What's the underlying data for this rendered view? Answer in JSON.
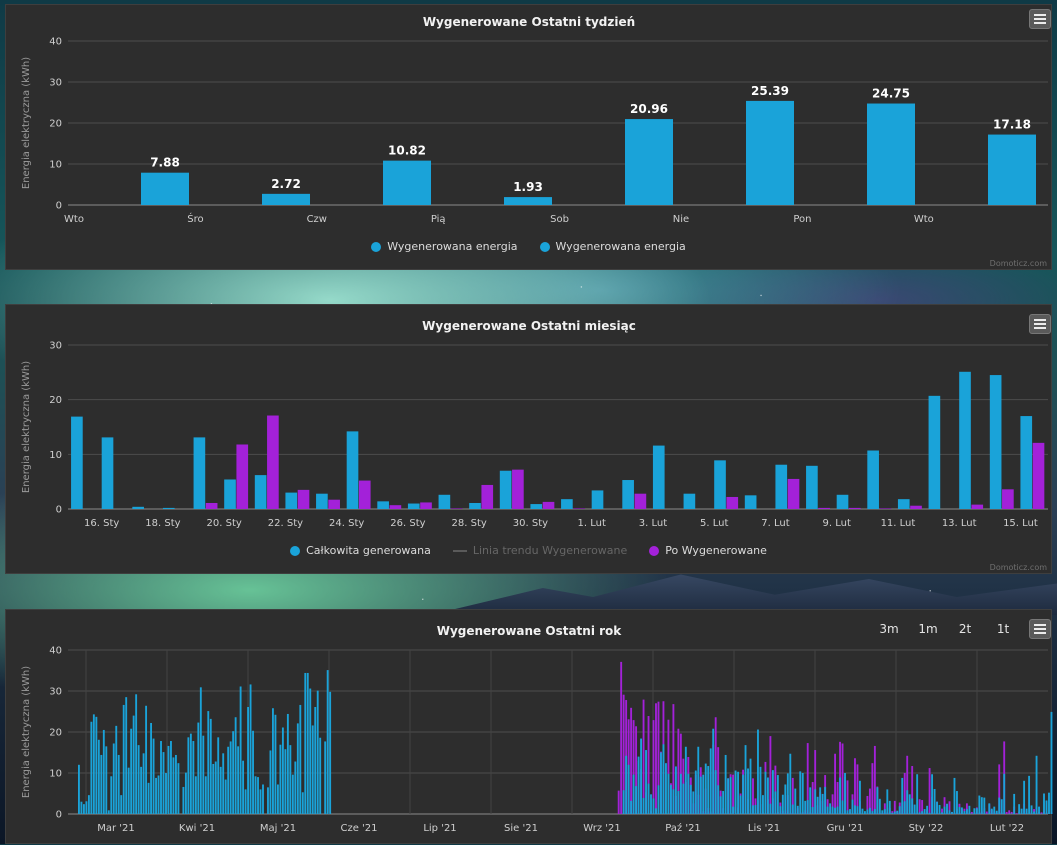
{
  "credit": "Domoticz.com",
  "colors": {
    "blue": "#1aa3d9",
    "purple": "#a321d9",
    "trend": "#5a5a5a"
  },
  "chart_data": [
    {
      "type": "bar",
      "title": "Wygenerowane Ostatni tydzień",
      "ylabel": "Energia elektryczna (kWh)",
      "ylim": [
        0,
        40
      ],
      "yticks": [
        0,
        10,
        20,
        30,
        40
      ],
      "categories": [
        "Wto",
        "Śro",
        "Czw",
        "Pią",
        "Sob",
        "Nie",
        "Pon",
        "Wto"
      ],
      "series": [
        {
          "name": "Wygenerowana energia",
          "values": [
            7.88,
            2.72,
            10.82,
            1.93,
            20.96,
            25.39,
            24.75,
            17.18
          ]
        }
      ],
      "legend": [
        "Wygenerowana energia",
        "Wygenerowana energia"
      ],
      "grid": true
    },
    {
      "type": "bar",
      "title": "Wygenerowane Ostatni miesiąc",
      "ylabel": "Energia elektryczna (kWh)",
      "ylim": [
        0,
        30
      ],
      "yticks": [
        0,
        10,
        20,
        30
      ],
      "xticks": [
        "16. Sty",
        "18. Sty",
        "20. Sty",
        "22. Sty",
        "24. Sty",
        "26. Sty",
        "28. Sty",
        "30. Sty",
        "1. Lut",
        "3. Lut",
        "5. Lut",
        "7. Lut",
        "9. Lut",
        "11. Lut",
        "13. Lut",
        "15. Lut"
      ],
      "series": [
        {
          "name": "Całkowita generowana",
          "values": [
            16.9,
            13.1,
            0.4,
            0.2,
            13.1,
            5.4,
            6.2,
            3.0,
            2.8,
            14.2,
            1.4,
            1.0,
            2.6,
            1.1,
            7.0,
            0.9,
            1.8,
            3.4,
            5.3,
            11.6,
            2.8,
            8.9,
            2.5,
            8.1,
            7.9,
            2.6,
            10.7,
            1.8,
            20.7,
            25.1,
            24.5,
            17.0
          ]
        },
        {
          "name": "Po Wygenerowane",
          "values": [
            0,
            0,
            0,
            0,
            1.1,
            11.8,
            17.1,
            3.5,
            1.7,
            5.2,
            0.7,
            1.2,
            0.1,
            4.4,
            7.2,
            1.3,
            0.1,
            0,
            2.8,
            0,
            0,
            2.2,
            0,
            5.5,
            0.2,
            0.2,
            0.1,
            0.6,
            0,
            0.8,
            3.6,
            12.1
          ]
        }
      ],
      "legend": [
        "Całkowita generowana",
        "Linia trendu Wygenerowane",
        "Po Wygenerowane"
      ],
      "grid": true
    },
    {
      "type": "bar",
      "title": "Wygenerowane Ostatni rok",
      "ylabel": "Energia elektryczna (kWh)",
      "ylim": [
        0,
        40
      ],
      "yticks": [
        0,
        10,
        20,
        30,
        40
      ],
      "xticks": [
        "Mar '21",
        "Kwi '21",
        "Maj '21",
        "Cze '21",
        "Lip '21",
        "Sie '21",
        "Wrz '21",
        "Paź '21",
        "Lis '21",
        "Gru '21",
        "Sty '22",
        "Lut '22"
      ],
      "range_buttons": [
        "3m",
        "1m",
        "2t",
        "1t"
      ],
      "series": [
        {
          "name": "Wygenerowane",
          "values": [
            12.0,
            3.0,
            2.4,
            3.1,
            4.6,
            22.5,
            24.3,
            23.7,
            18.1,
            14.4,
            20.5,
            16.5,
            0.9,
            9.2,
            17.2,
            21.5,
            14.4,
            4.6,
            26.6,
            28.5,
            11.3,
            20.8,
            24.0,
            29.2,
            16.8,
            11.5,
            14.8,
            26.4,
            7.6,
            22.2,
            18.4,
            8.8,
            9.4,
            17.8,
            15.1,
            10.0,
            16.6,
            17.8,
            13.8,
            14.4,
            12.4,
            0.0,
            6.6,
            10.1,
            18.7,
            19.6,
            17.8,
            9.2,
            22.3,
            30.9,
            19.1,
            9.2,
            25.1,
            23.2,
            12.2,
            12.8,
            18.7,
            11.5,
            14.8,
            8.4,
            16.4,
            17.7,
            20.2,
            23.6,
            16.5,
            31.1,
            13.0,
            6.0,
            26.1,
            31.6,
            20.3,
            9.2,
            9.0,
            6.0,
            7.2,
            0.0,
            6.5,
            15.5,
            25.8,
            24.2,
            7.2,
            16.9,
            21.1,
            15.8,
            24.4,
            16.8,
            9.6,
            12.8,
            22.1,
            26.6,
            5.3,
            34.4,
            34.4,
            30.6,
            21.6,
            26.1,
            30.1,
            18.6,
            0.0,
            17.7,
            35.1,
            29.8,
            0,
            0,
            0,
            0,
            0,
            0,
            0,
            0,
            0,
            0,
            0,
            0,
            0,
            0,
            0,
            0,
            0,
            0,
            0,
            0,
            0,
            0,
            0,
            0,
            0,
            0,
            0,
            0,
            0,
            0,
            0,
            0,
            0,
            0,
            0,
            0,
            0,
            0,
            0,
            0,
            0,
            0,
            0,
            0,
            0,
            0,
            0,
            0,
            0,
            0,
            0,
            0,
            0,
            0,
            0,
            0,
            0,
            0,
            0,
            0,
            0,
            0,
            0,
            0,
            0,
            0,
            0,
            0,
            0,
            0,
            0,
            0,
            0,
            0,
            0,
            0,
            0,
            0,
            0,
            0,
            0,
            0,
            0,
            0,
            0,
            0,
            0,
            0,
            0,
            0,
            0,
            0,
            0,
            0,
            0,
            0,
            0,
            0,
            0,
            0,
            0,
            0,
            0,
            0,
            0,
            0,
            0,
            0,
            0,
            0,
            0,
            0,
            0,
            0,
            0,
            0,
            0,
            5.8,
            14.2,
            12.0,
            3.2,
            9.6,
            6.8,
            14.0,
            18.4,
            3.9,
            15.6,
            7.4,
            4.8,
            3.8,
            1.4,
            7.0,
            15.0,
            17.0,
            12.4,
            9.8,
            7.1,
            6.0,
            11.6,
            5.6,
            9.8,
            7.4,
            16.4,
            9.8,
            7.1,
            5.5,
            10.6,
            16.4,
            9.1,
            9.6,
            12.3,
            11.7,
            16.0,
            20.8,
            10.7,
            7.0,
            4.3,
            5.6,
            14.4,
            8.7,
            9.0,
            1.8,
            10.6,
            10.3,
            4.5,
            9.6,
            16.8,
            11.1,
            13.5,
            2.1,
            2.2,
            20.6,
            11.5,
            4.6,
            10.3,
            8.9,
            2.5,
            10.7,
            5.5,
            9.5,
            1.9,
            4.7,
            7.2,
            9.9,
            14.7,
            2.3,
            6.2,
            2.0,
            10.4,
            10.0,
            3.2,
            3.4,
            6.5,
            1.7,
            6.0,
            4.2,
            6.5,
            4.9,
            6.6,
            1.8,
            2.6,
            1.8,
            1.5,
            1.8,
            8.9,
            3.3,
            10.0,
            0.9,
            1.2,
            3.5,
            2.1,
            1.9,
            8.1,
            1.3,
            0.7,
            1.1,
            1.5,
            0.7,
            1.2,
            6.5,
            3.7,
            0.9,
            1.2,
            6.0,
            3.2,
            0.3,
            0.6,
            0.8,
            1.9,
            8.8,
            3.1,
            5.8,
            4.8,
            3.8,
            2.3,
            9.7,
            0.4,
            0.7,
            1.2,
            2.0,
            0.3,
            9.7,
            6.1,
            3.0,
            2.2,
            0.4,
            1.8,
            2.5,
            0.9,
            0.5,
            8.8,
            5.6,
            1.7,
            1.6,
            0.7,
            1.2,
            2.0,
            0.1,
            1.4,
            1.4,
            4.5,
            4.1,
            4.0,
            0.1,
            2.6,
            1.3,
            1.8,
            0.8,
            4.0,
            3.6,
            9.8,
            0.0,
            0.1,
            0.1,
            4.9,
            0.0,
            2.4,
            1.3,
            8.1,
            1.3,
            9.3,
            2.1,
            0.6,
            14.2,
            1.8,
            0.1,
            5.0,
            3.3,
            5.2,
            24.9,
            24.1,
            17.0
          ]
        },
        {
          "name": "Po Wygenerowane",
          "values": [
            0,
            0,
            0,
            0,
            0,
            0,
            0,
            0,
            0,
            0,
            0,
            0,
            0,
            0,
            0,
            0,
            0,
            0,
            0,
            0,
            0,
            0,
            0,
            0,
            0,
            0,
            0,
            0,
            0,
            0,
            0,
            0,
            0,
            0,
            0,
            0,
            0,
            0,
            0,
            0,
            0,
            0,
            0,
            0,
            0,
            0,
            0,
            0,
            0,
            0,
            0,
            0,
            0,
            0,
            0,
            0,
            0,
            0,
            0,
            0,
            0,
            0,
            0,
            0,
            0,
            0,
            0,
            0,
            0,
            0,
            0,
            0,
            0,
            0,
            0,
            0,
            0,
            0,
            0,
            0,
            0,
            0,
            0,
            0,
            0,
            0,
            0,
            0,
            0,
            0,
            0,
            0,
            0,
            0,
            0,
            0,
            0,
            0,
            0,
            0,
            0,
            0,
            0,
            0,
            0,
            0,
            0,
            0,
            0,
            0,
            0,
            0,
            0,
            0,
            0,
            0,
            0,
            0,
            0,
            0,
            0,
            0,
            0,
            0,
            0,
            0,
            0,
            0,
            0,
            0,
            0,
            0,
            0,
            0,
            0,
            0,
            0,
            0,
            0,
            0,
            0,
            0,
            0,
            0,
            0,
            0,
            0,
            0,
            0,
            0,
            0,
            0,
            0,
            0,
            0,
            0,
            0,
            0,
            0,
            0,
            0,
            0,
            0,
            0,
            0,
            0,
            0,
            0,
            0,
            0,
            0,
            0,
            0,
            0,
            0,
            0,
            0,
            0,
            0,
            0,
            0,
            0,
            0,
            0,
            0,
            0,
            0,
            0,
            0,
            0,
            0,
            0,
            0,
            0,
            0,
            0,
            0,
            0,
            0,
            0,
            0,
            0,
            0,
            0,
            0,
            0,
            0,
            0,
            0,
            0,
            0,
            0,
            0,
            0,
            0,
            0,
            0,
            5.7,
            37.1,
            29.1,
            27.8,
            23.1,
            25.9,
            22.9,
            21.4,
            12.9,
            11.0,
            27.9,
            5.3,
            23.9,
            0.8,
            22.9,
            27.0,
            27.4,
            15.2,
            27.5,
            0.0,
            23.0,
            7.5,
            26.8,
            4.4,
            20.8,
            19.6,
            13.5,
            7.8,
            13.9,
            8.9,
            2.6,
            9.6,
            4.7,
            11.4,
            0.7,
            6.2,
            1.5,
            0.6,
            16.9,
            23.6,
            16.3,
            5.7,
            1.4,
            0.1,
            8.7,
            9.7,
            9.6,
            1.6,
            1.6,
            5.0,
            10.8,
            9.4,
            3.6,
            1.1,
            8.7,
            3.8,
            3.3,
            2.4,
            0.4,
            12.7,
            3.6,
            19.0,
            3.8,
            11.8,
            0.5,
            2.8,
            0.8,
            0.9,
            4.6,
            0.3,
            8.8,
            0.1,
            1.4,
            0.0,
            0.5,
            0.9,
            17.3,
            0.4,
            7.8,
            15.6,
            2.1,
            5.4,
            3.2,
            9.5,
            3.6,
            0.6,
            4.8,
            14.7,
            7.8,
            17.6,
            17.2,
            9.0,
            8.2,
            0.4,
            4.8,
            13.6,
            12.1,
            3.1,
            0.1,
            0.0,
            4.4,
            6.2,
            12.4,
            16.6,
            6.7,
            0.2,
            0.3,
            2.6,
            0.4,
            1.5,
            0.7,
            3.2,
            0.6,
            2.8,
            2.8,
            10.0,
            14.2,
            0.1,
            11.7,
            0.4,
            0.1,
            3.6,
            3.4,
            0.5,
            1.0,
            11.2,
            4.2,
            0.5,
            3.0,
            0.2,
            1.3,
            4.1,
            1.0,
            3.1,
            0.5,
            0.4,
            1.2,
            2.5,
            1.2,
            1.3,
            2.6,
            0.4,
            0.5,
            0.4,
            1.6,
            0.4,
            0.6,
            1.4,
            0.6,
            2.4,
            1.0,
            0.6,
            0.3,
            12.1,
            0.4,
            17.7,
            0.5,
            0.9,
            0.5,
            1.8,
            0.2,
            0.6,
            0.1,
            2.5,
            0.9,
            0.1,
            0.6,
            1.2,
            1.8,
            0.5,
            0.4,
            0.9,
            0.4,
            0.1,
            0.4,
            0.8,
            0.1,
            0.3,
            0.4,
            0.2,
            0.5,
            0.2,
            0.3,
            0.9,
            0.3,
            0.2,
            0.3,
            0.4,
            0.2
          ]
        }
      ],
      "grid": true
    }
  ]
}
